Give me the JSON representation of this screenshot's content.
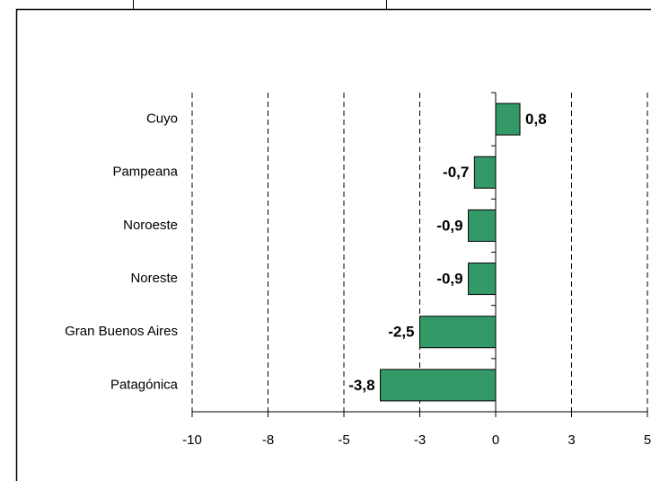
{
  "chart_data": {
    "type": "bar",
    "orientation": "horizontal",
    "categories": [
      "Cuyo",
      "Pampeana",
      "Noroeste",
      "Noreste",
      "Gran Buenos Aires",
      "Patagónica"
    ],
    "values": [
      0.8,
      -0.7,
      -0.9,
      -0.9,
      -2.5,
      -3.8
    ],
    "value_labels": [
      "0,8",
      "-0,7",
      "-0,9",
      "-0,9",
      "-2,5",
      "-3,8"
    ],
    "color": "#339966",
    "xlim": [
      -10,
      5
    ],
    "xticks": [
      -10,
      {
        "value": -7.5,
        "label": "-8"
      },
      -5,
      {
        "value": -2.5,
        "label": "-3"
      },
      0,
      {
        "value": 2.5,
        "label": "3"
      },
      5
    ],
    "grid": true
  }
}
